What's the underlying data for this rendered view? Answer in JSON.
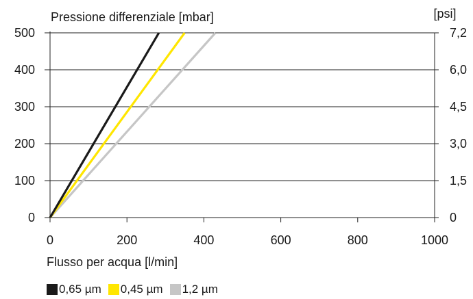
{
  "chart_data": {
    "type": "line",
    "title": "Pressione differenziale  [mbar]",
    "right_axis_unit": "[psi]",
    "xlabel": "Flusso per acqua [l/min]",
    "xlim": [
      0,
      1000
    ],
    "ylim": [
      0,
      500
    ],
    "x_ticks": [
      "0",
      "200",
      "400",
      "600",
      "800",
      "1000"
    ],
    "y_ticks": [
      "0",
      "100",
      "200",
      "300",
      "400",
      "500"
    ],
    "y2_ticks": [
      "0",
      "1,5",
      "3,0",
      "4,5",
      "6,0",
      "7,2"
    ],
    "grid": "horizontal",
    "legend_position": "bottom-left",
    "series": [
      {
        "name": "0,65 µm",
        "color": "#1a1a1a",
        "x": [
          0,
          283
        ],
        "y": [
          0,
          500
        ]
      },
      {
        "name": "0,45 µm",
        "color": "#ffe600",
        "x": [
          0,
          350
        ],
        "y": [
          0,
          500
        ]
      },
      {
        "name": "1,2 µm",
        "color": "#c6c6c6",
        "x": [
          0,
          430
        ],
        "y": [
          0,
          500
        ]
      }
    ]
  }
}
